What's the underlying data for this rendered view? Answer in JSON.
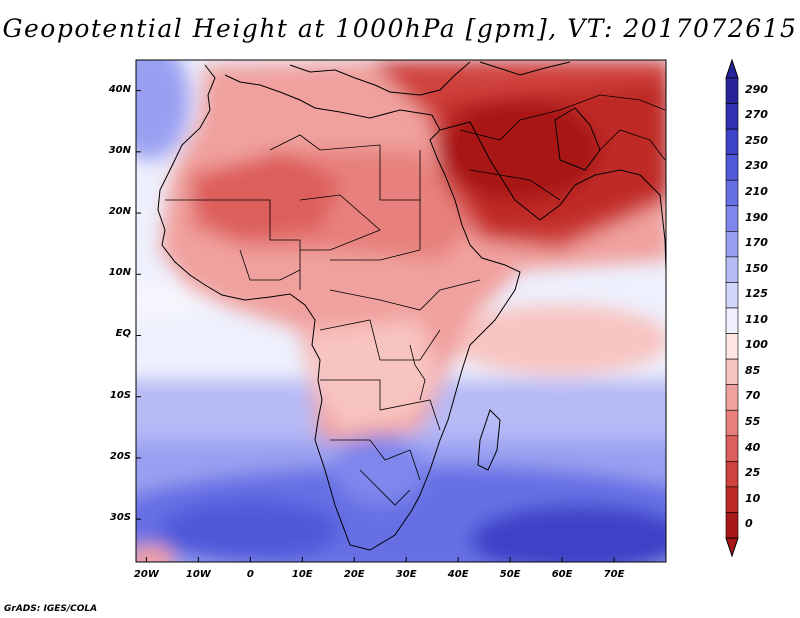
{
  "title": "Geopotential Height at 1000hPa [gpm], VT: 2017072615",
  "credit": "GrADS: IGES/COLA",
  "lat_ticks": [
    {
      "value": 40,
      "label": "40N"
    },
    {
      "value": 30,
      "label": "30N"
    },
    {
      "value": 20,
      "label": "20N"
    },
    {
      "value": 10,
      "label": "10N"
    },
    {
      "value": 0,
      "label": "EQ"
    },
    {
      "value": -10,
      "label": "10S"
    },
    {
      "value": -20,
      "label": "20S"
    },
    {
      "value": -30,
      "label": "30S"
    }
  ],
  "lon_ticks": [
    {
      "value": -20,
      "label": "20W"
    },
    {
      "value": -10,
      "label": "10W"
    },
    {
      "value": 0,
      "label": "0"
    },
    {
      "value": 10,
      "label": "10E"
    },
    {
      "value": 20,
      "label": "20E"
    },
    {
      "value": 30,
      "label": "30E"
    },
    {
      "value": 40,
      "label": "40E"
    },
    {
      "value": 50,
      "label": "50E"
    },
    {
      "value": 60,
      "label": "60E"
    },
    {
      "value": 70,
      "label": "70E"
    }
  ],
  "colorbar": {
    "labels": [
      "290",
      "270",
      "250",
      "230",
      "210",
      "190",
      "170",
      "150",
      "125",
      "110",
      "100",
      "85",
      "70",
      "55",
      "40",
      "25",
      "10",
      "0"
    ],
    "colors": [
      "#27249a",
      "#2f31b0",
      "#3c43c8",
      "#4f59d9",
      "#6670e4",
      "#7f86ec",
      "#9aa0f1",
      "#b6baf5",
      "#d2d5fa",
      "#efeffd",
      "#fde5e3",
      "#f8c4c1",
      "#f0a19e",
      "#e7807c",
      "#dd5f5b",
      "#d0423e",
      "#bf2a27",
      "#a81818"
    ],
    "range": [
      0,
      290
    ]
  },
  "map": {
    "lon_range": [
      -22,
      80
    ],
    "lat_range": [
      -37,
      45
    ],
    "regions": [
      {
        "name": "north-africa-interior",
        "value_range": "40-55"
      },
      {
        "name": "arabian-peninsula",
        "value_range": "0-10"
      },
      {
        "name": "equatorial-africa",
        "value_range": "70-100"
      },
      {
        "name": "south-indian-ocean",
        "value_range": "230-270"
      },
      {
        "name": "south-atlantic",
        "value_range": "170-230"
      }
    ]
  }
}
